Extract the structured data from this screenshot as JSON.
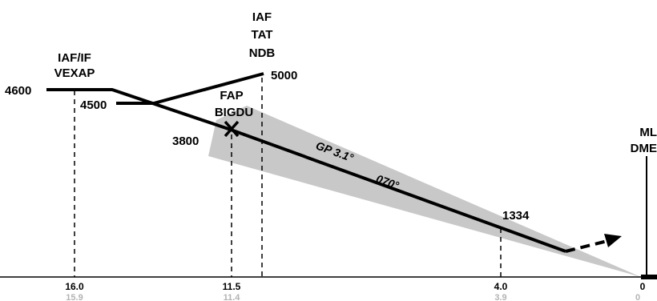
{
  "fixes": {
    "iaf_if_line1": "IAF/IF",
    "iaf_if_line2": "VEXAP",
    "iaf_line1": "IAF",
    "iaf_line2": "TAT",
    "iaf_line3": "NDB",
    "fap_line1": "FAP",
    "fap_line2": "BIGDU",
    "ml_line1": "ML",
    "ml_line2": "DME"
  },
  "altitudes": {
    "a4600": "4600",
    "a4500": "4500",
    "a5000": "5000",
    "a3800": "3800",
    "a1334": "1334"
  },
  "path": {
    "glidepath": "GP 3.1°",
    "course": "070°"
  },
  "distances": {
    "d16": "16.0",
    "d16_alt": "15.9",
    "d115": "11.5",
    "d115_alt": "11.4",
    "d4": "4.0",
    "d4_alt": "3.9",
    "d0": "0",
    "d0_alt": "0"
  },
  "colors": {
    "ink": "#000000",
    "shade": "#c8c8c8",
    "secondary_text": "#b3b3b3"
  }
}
